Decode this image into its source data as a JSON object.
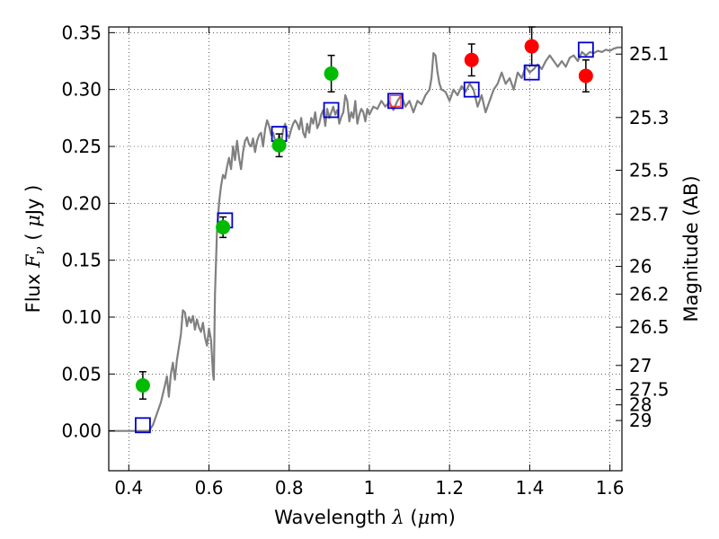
{
  "chart_data": {
    "type": "scatter",
    "xlabel": {
      "prefix": "Wavelength ",
      "symbol": "λ",
      "unit": " (",
      "mu": "μ",
      "unit_end": "m)"
    },
    "ylabel": {
      "prefix": "Flux ",
      "symbol": "F",
      "sub": "ν",
      "unit": " ( ",
      "mu": "μ",
      "unit_end": "Jy )"
    },
    "y2label": "Magnitude (AB)",
    "xlim": [
      0.35,
      1.63
    ],
    "ylim": [
      -0.035,
      0.355
    ],
    "x_ticks": [
      {
        "v": 0.4,
        "label": "0.4"
      },
      {
        "v": 0.6,
        "label": "0.6"
      },
      {
        "v": 0.8,
        "label": "0.8"
      },
      {
        "v": 1.0,
        "label": "1"
      },
      {
        "v": 1.2,
        "label": "1.2"
      },
      {
        "v": 1.4,
        "label": "1.4"
      },
      {
        "v": 1.6,
        "label": "1.6"
      }
    ],
    "y_ticks": [
      {
        "v": 0.0,
        "label": "0.00"
      },
      {
        "v": 0.05,
        "label": "0.05"
      },
      {
        "v": 0.1,
        "label": "0.10"
      },
      {
        "v": 0.15,
        "label": "0.15"
      },
      {
        "v": 0.2,
        "label": "0.20"
      },
      {
        "v": 0.25,
        "label": "0.25"
      },
      {
        "v": 0.3,
        "label": "0.30"
      },
      {
        "v": 0.35,
        "label": "0.35"
      }
    ],
    "mag_ticks": [
      {
        "mag": 25.1,
        "label": "25.1"
      },
      {
        "mag": 25.3,
        "label": "25.3"
      },
      {
        "mag": 25.5,
        "label": "25.5"
      },
      {
        "mag": 25.7,
        "label": "25.7"
      },
      {
        "mag": 26,
        "label": "26"
      },
      {
        "mag": 26.2,
        "label": "26.2"
      },
      {
        "mag": 26.5,
        "label": "26.5"
      },
      {
        "mag": 27,
        "label": "27"
      },
      {
        "mag": 27.5,
        "label": "27.5"
      },
      {
        "mag": 28,
        "label": "28"
      },
      {
        "mag": 29,
        "label": "29"
      }
    ],
    "grid": true,
    "colors": {
      "model": "#808080",
      "optical": "#00bb00",
      "nir": "#ff0000",
      "model_band": "#0000cc",
      "magenta_band": "#ff3333"
    },
    "model_spectrum": [
      [
        0.35,
        0.0
      ],
      [
        0.44,
        0.0
      ],
      [
        0.45,
        0.0
      ],
      [
        0.46,
        0.005
      ],
      [
        0.47,
        0.015
      ],
      [
        0.48,
        0.025
      ],
      [
        0.49,
        0.04
      ],
      [
        0.495,
        0.048
      ],
      [
        0.5,
        0.03
      ],
      [
        0.505,
        0.05
      ],
      [
        0.51,
        0.06
      ],
      [
        0.515,
        0.045
      ],
      [
        0.52,
        0.062
      ],
      [
        0.53,
        0.085
      ],
      [
        0.535,
        0.106
      ],
      [
        0.54,
        0.104
      ],
      [
        0.545,
        0.092
      ],
      [
        0.55,
        0.1
      ],
      [
        0.555,
        0.095
      ],
      [
        0.56,
        0.101
      ],
      [
        0.565,
        0.089
      ],
      [
        0.57,
        0.098
      ],
      [
        0.575,
        0.091
      ],
      [
        0.58,
        0.087
      ],
      [
        0.585,
        0.095
      ],
      [
        0.59,
        0.082
      ],
      [
        0.595,
        0.075
      ],
      [
        0.6,
        0.09
      ],
      [
        0.605,
        0.08
      ],
      [
        0.61,
        0.05
      ],
      [
        0.612,
        0.045
      ],
      [
        0.615,
        0.12
      ],
      [
        0.62,
        0.175
      ],
      [
        0.625,
        0.2
      ],
      [
        0.63,
        0.215
      ],
      [
        0.635,
        0.225
      ],
      [
        0.64,
        0.222
      ],
      [
        0.645,
        0.232
      ],
      [
        0.65,
        0.24
      ],
      [
        0.655,
        0.23
      ],
      [
        0.66,
        0.25
      ],
      [
        0.665,
        0.238
      ],
      [
        0.67,
        0.255
      ],
      [
        0.675,
        0.24
      ],
      [
        0.68,
        0.23
      ],
      [
        0.685,
        0.245
      ],
      [
        0.69,
        0.255
      ],
      [
        0.695,
        0.258
      ],
      [
        0.7,
        0.252
      ],
      [
        0.705,
        0.25
      ],
      [
        0.71,
        0.257
      ],
      [
        0.715,
        0.245
      ],
      [
        0.72,
        0.255
      ],
      [
        0.725,
        0.26
      ],
      [
        0.73,
        0.262
      ],
      [
        0.735,
        0.25
      ],
      [
        0.74,
        0.265
      ],
      [
        0.745,
        0.273
      ],
      [
        0.75,
        0.268
      ],
      [
        0.755,
        0.26
      ],
      [
        0.76,
        0.262
      ],
      [
        0.765,
        0.255
      ],
      [
        0.77,
        0.25
      ],
      [
        0.775,
        0.26
      ],
      [
        0.78,
        0.252
      ],
      [
        0.785,
        0.265
      ],
      [
        0.79,
        0.27
      ],
      [
        0.795,
        0.26
      ],
      [
        0.8,
        0.258
      ],
      [
        0.805,
        0.265
      ],
      [
        0.81,
        0.27
      ],
      [
        0.815,
        0.273
      ],
      [
        0.82,
        0.27
      ],
      [
        0.825,
        0.265
      ],
      [
        0.83,
        0.275
      ],
      [
        0.835,
        0.262
      ],
      [
        0.84,
        0.258
      ],
      [
        0.845,
        0.27
      ],
      [
        0.85,
        0.262
      ],
      [
        0.855,
        0.275
      ],
      [
        0.86,
        0.27
      ],
      [
        0.865,
        0.28
      ],
      [
        0.87,
        0.266
      ],
      [
        0.875,
        0.27
      ],
      [
        0.88,
        0.278
      ],
      [
        0.885,
        0.282
      ],
      [
        0.89,
        0.268
      ],
      [
        0.895,
        0.283
      ],
      [
        0.9,
        0.275
      ],
      [
        0.905,
        0.28
      ],
      [
        0.91,
        0.285
      ],
      [
        0.915,
        0.278
      ],
      [
        0.92,
        0.282
      ],
      [
        0.925,
        0.27
      ],
      [
        0.93,
        0.276
      ],
      [
        0.935,
        0.28
      ],
      [
        0.94,
        0.295
      ],
      [
        0.945,
        0.29
      ],
      [
        0.95,
        0.272
      ],
      [
        0.955,
        0.28
      ],
      [
        0.96,
        0.275
      ],
      [
        0.965,
        0.29
      ],
      [
        0.97,
        0.27
      ],
      [
        0.975,
        0.278
      ],
      [
        0.98,
        0.283
      ],
      [
        0.985,
        0.28
      ],
      [
        0.99,
        0.272
      ],
      [
        0.995,
        0.283
      ],
      [
        1.0,
        0.278
      ],
      [
        1.01,
        0.285
      ],
      [
        1.02,
        0.283
      ],
      [
        1.03,
        0.29
      ],
      [
        1.04,
        0.285
      ],
      [
        1.05,
        0.289
      ],
      [
        1.06,
        0.282
      ],
      [
        1.07,
        0.29
      ],
      [
        1.08,
        0.295
      ],
      [
        1.09,
        0.285
      ],
      [
        1.1,
        0.29
      ],
      [
        1.11,
        0.28
      ],
      [
        1.12,
        0.29
      ],
      [
        1.13,
        0.287
      ],
      [
        1.14,
        0.295
      ],
      [
        1.15,
        0.3
      ],
      [
        1.155,
        0.31
      ],
      [
        1.16,
        0.332
      ],
      [
        1.165,
        0.33
      ],
      [
        1.17,
        0.315
      ],
      [
        1.175,
        0.305
      ],
      [
        1.18,
        0.3
      ],
      [
        1.19,
        0.298
      ],
      [
        1.2,
        0.29
      ],
      [
        1.21,
        0.3
      ],
      [
        1.22,
        0.295
      ],
      [
        1.23,
        0.303
      ],
      [
        1.24,
        0.298
      ],
      [
        1.25,
        0.305
      ],
      [
        1.26,
        0.3
      ],
      [
        1.27,
        0.285
      ],
      [
        1.28,
        0.295
      ],
      [
        1.29,
        0.28
      ],
      [
        1.3,
        0.29
      ],
      [
        1.31,
        0.3
      ],
      [
        1.32,
        0.305
      ],
      [
        1.33,
        0.315
      ],
      [
        1.34,
        0.305
      ],
      [
        1.35,
        0.31
      ],
      [
        1.36,
        0.3
      ],
      [
        1.37,
        0.315
      ],
      [
        1.38,
        0.31
      ],
      [
        1.39,
        0.32
      ],
      [
        1.4,
        0.315
      ],
      [
        1.41,
        0.318
      ],
      [
        1.42,
        0.322
      ],
      [
        1.43,
        0.318
      ],
      [
        1.44,
        0.325
      ],
      [
        1.45,
        0.33
      ],
      [
        1.46,
        0.325
      ],
      [
        1.47,
        0.32
      ],
      [
        1.48,
        0.325
      ],
      [
        1.49,
        0.32
      ],
      [
        1.5,
        0.328
      ],
      [
        1.51,
        0.33
      ],
      [
        1.52,
        0.325
      ],
      [
        1.53,
        0.333
      ],
      [
        1.54,
        0.33
      ],
      [
        1.55,
        0.333
      ],
      [
        1.56,
        0.332
      ],
      [
        1.57,
        0.334
      ],
      [
        1.58,
        0.333
      ],
      [
        1.59,
        0.335
      ],
      [
        1.6,
        0.334
      ],
      [
        1.61,
        0.336
      ],
      [
        1.62,
        0.337
      ],
      [
        1.63,
        0.337
      ]
    ],
    "observed_optical": [
      {
        "x": 0.435,
        "y": 0.04,
        "err": 0.012
      },
      {
        "x": 0.635,
        "y": 0.179,
        "err": 0.009
      },
      {
        "x": 0.775,
        "y": 0.251,
        "err": 0.01
      },
      {
        "x": 0.905,
        "y": 0.314,
        "err": 0.016
      }
    ],
    "observed_nir": [
      {
        "x": 1.255,
        "y": 0.326,
        "err": 0.014
      },
      {
        "x": 1.405,
        "y": 0.338,
        "err": 0.017
      },
      {
        "x": 1.54,
        "y": 0.312,
        "err": 0.014
      }
    ],
    "model_bands": [
      {
        "x": 0.435,
        "y": 0.005
      },
      {
        "x": 0.64,
        "y": 0.185
      },
      {
        "x": 0.775,
        "y": 0.261
      },
      {
        "x": 0.905,
        "y": 0.282
      },
      {
        "x": 1.065,
        "y": 0.29
      },
      {
        "x": 1.255,
        "y": 0.3
      },
      {
        "x": 1.405,
        "y": 0.315
      },
      {
        "x": 1.54,
        "y": 0.335
      }
    ],
    "magenta_band": {
      "x": 1.065,
      "y": 0.29
    }
  }
}
